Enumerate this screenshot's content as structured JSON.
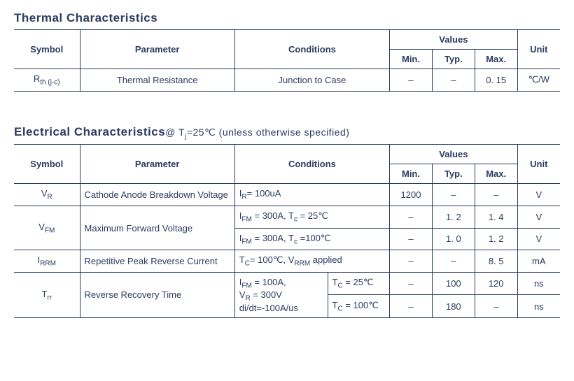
{
  "colors": {
    "text": "#2a3b5f",
    "border": "#2a3b5f",
    "background": "#ffffff"
  },
  "thermal": {
    "title": "Thermal  Characteristics",
    "headers": {
      "symbol": "Symbol",
      "parameter": "Parameter",
      "conditions": "Conditions",
      "values": "Values",
      "min": "Min.",
      "typ": "Typ.",
      "max": "Max.",
      "unit": "Unit"
    },
    "rows": [
      {
        "symbol_html": "R<sub>th (j-c)</sub>",
        "parameter": "Thermal  Resistance",
        "conditions": "Junction  to  Case",
        "min": "–",
        "typ": "–",
        "max": "0. 15",
        "unit": "℃/W"
      }
    ]
  },
  "electrical": {
    "title": "Electrical  Characteristics",
    "title_note_html": "@ T<sub>j</sub>=25℃ (unless  otherwise  specified)",
    "headers": {
      "symbol": "Symbol",
      "parameter": "Parameter",
      "conditions": "Conditions",
      "values": "Values",
      "min": "Min.",
      "typ": "Typ.",
      "max": "Max.",
      "unit": "Unit"
    },
    "rows": {
      "vr": {
        "symbol_html": "V<sub>R</sub>",
        "parameter": "Cathode  Anode  Breakdown Voltage",
        "conditions_html": "I<sub>R</sub>=  100uA",
        "min": "1200",
        "typ": "–",
        "max": "–",
        "unit": "V"
      },
      "vfm": {
        "symbol_html": "V<sub>FM</sub>",
        "parameter": "Maximum  Forward  Voltage",
        "cond1_html": "I<sub>FM</sub> =  300A,   T<sub>c</sub> =  25℃",
        "min1": "–",
        "typ1": "1. 2",
        "max1": "1. 4",
        "unit1": "V",
        "cond2_html": "I<sub>FM</sub> =  300A,   T<sub>c</sub> =100℃",
        "min2": "–",
        "typ2": "1. 0",
        "max2": "1. 2",
        "unit2": "V"
      },
      "irrm": {
        "symbol_html": "I<sub>RRM</sub>",
        "parameter": "Repetitive  Peak  Reverse Current",
        "conditions_html": "T<sub>C</sub>=  100℃,  V<sub>RRM</sub> applied",
        "min": "–",
        "typ": "–",
        "max": "8. 5",
        "unit": "mA"
      },
      "trr": {
        "symbol_html": "T<sub>rr</sub>",
        "parameter": "Reverse  Recovery  Time",
        "cond_shared_html": "I<sub>FM</sub> =  100A,<br>V<sub>R</sub> =  300V<br>di/dt=-100A/us",
        "cond1_html": "T<sub>C</sub> =  25℃",
        "min1": "–",
        "typ1": "100",
        "max1": "120",
        "unit1": "ns",
        "cond2_html": "T<sub>C</sub> =  100℃",
        "min2": "–",
        "typ2": "180",
        "max2": "–",
        "unit2": "ns"
      }
    }
  }
}
